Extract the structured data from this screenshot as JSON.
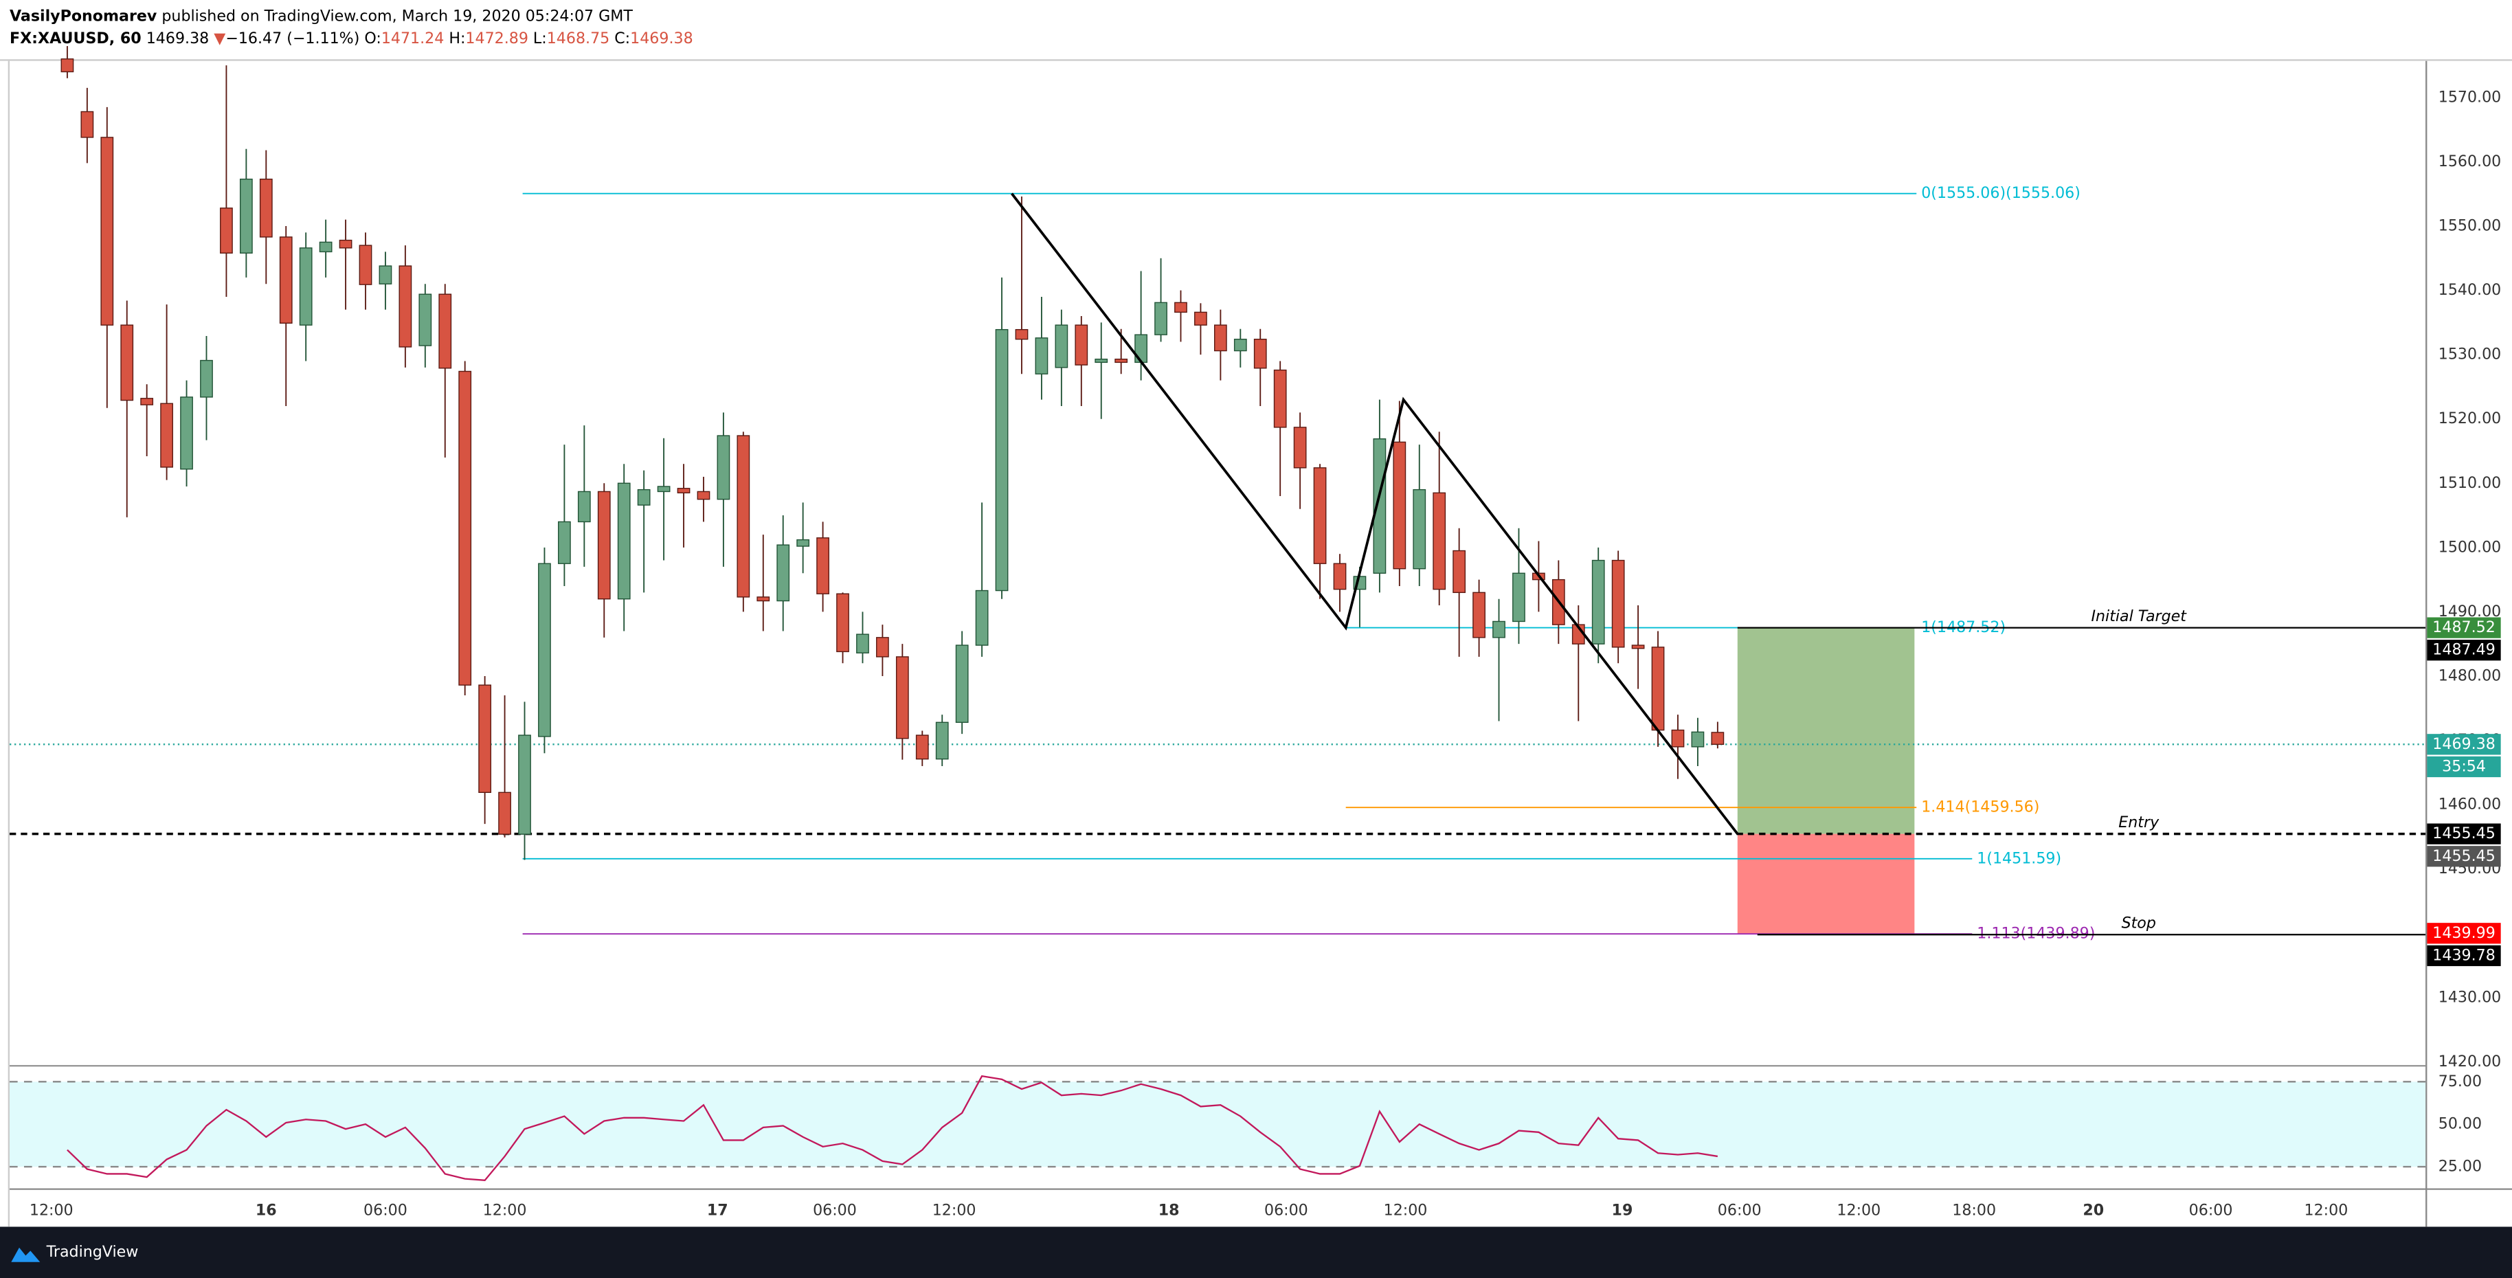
{
  "header": {
    "author": "VasilyPonomarev",
    "published": "published on TradingView.com, March 19, 2020 05:24:07 GMT",
    "symbol": "FX:XAUUSD, 60",
    "last": "1469.38",
    "arrow": "▼",
    "change": "−16.47 (−1.11%)",
    "ohlc": [
      {
        "label": "O:",
        "value": "1471.24"
      },
      {
        "label": "H:",
        "value": "1472.89"
      },
      {
        "label": "L:",
        "value": "1468.75"
      },
      {
        "label": "C:",
        "value": "1469.38"
      }
    ]
  },
  "chart_data": [
    {
      "type": "candlestick",
      "up_color": "#6ba583",
      "down_color": "#d75442",
      "open": [
        1576,
        1567.8,
        1563.8,
        1534.6,
        1523.2,
        1522.4,
        1512.2,
        1523.4,
        1552.8,
        1545.8,
        1557.3,
        1548.3,
        1534.6,
        1546,
        1547.8,
        1547,
        1541,
        1543.8,
        1531.4,
        1539.4,
        1527.4,
        1478.6,
        1461.9,
        1455.4,
        1470.6,
        1497.5,
        1504,
        1508.7,
        1492,
        1506.6,
        1508.7,
        1509.2,
        1508.7,
        1507.5,
        1517.4,
        1492.3,
        1491.7,
        1500.2,
        1501.5,
        1492.8,
        1483.6,
        1486,
        1483,
        1470.8,
        1467.1,
        1472.8,
        1484.8,
        1493.3,
        1533.9,
        1527,
        1528,
        1534.6,
        1528.8,
        1529.3,
        1528.8,
        1533.1,
        1538.1,
        1536.6,
        1534.6,
        1530.6,
        1532.4,
        1527.6,
        1518.7,
        1512.4,
        1497.5,
        1493.5,
        1496,
        1516.4,
        1496.7,
        1508.5,
        1499.5,
        1493,
        1486,
        1488.5,
        1496,
        1495,
        1488,
        1485,
        1498,
        1484.8,
        1484.5,
        1471.6,
        1469,
        1471.24
      ],
      "high": [
        1578,
        1571.5,
        1568.5,
        1538.4,
        1525.4,
        1537.8,
        1526,
        1532.9,
        1575,
        1562,
        1561.8,
        1550,
        1549,
        1551,
        1551,
        1549,
        1546,
        1547,
        1541,
        1541,
        1529,
        1480,
        1477,
        1476,
        1500,
        1516,
        1519,
        1510,
        1513,
        1512,
        1517,
        1513,
        1511,
        1521,
        1518,
        1502,
        1505,
        1507,
        1504,
        1493,
        1490,
        1488,
        1485,
        1471.5,
        1474,
        1487,
        1507,
        1542,
        1554.6,
        1539,
        1537,
        1536,
        1535,
        1534,
        1543,
        1545,
        1540,
        1538,
        1537,
        1534,
        1534,
        1529,
        1521,
        1513,
        1499,
        1497,
        1523,
        1522.8,
        1516,
        1518,
        1503,
        1495,
        1492,
        1503,
        1501,
        1498,
        1491,
        1500,
        1499.5,
        1491,
        1487,
        1474,
        1473.5,
        1472.89
      ],
      "low": [
        1573,
        1559.8,
        1521.7,
        1504.7,
        1514.2,
        1510.5,
        1509.5,
        1516.7,
        1539,
        1542,
        1541,
        1522,
        1529,
        1542,
        1537,
        1537,
        1537,
        1528,
        1528,
        1514,
        1477,
        1457,
        1454.9,
        1451.4,
        1468,
        1494,
        1497,
        1486,
        1487,
        1493,
        1498,
        1500,
        1504,
        1497,
        1490,
        1487,
        1487,
        1496,
        1490,
        1482,
        1482,
        1480,
        1467,
        1466,
        1466,
        1471,
        1483,
        1492,
        1527,
        1523,
        1522,
        1522,
        1520,
        1527,
        1526,
        1532,
        1532,
        1530,
        1526,
        1528,
        1522,
        1508,
        1506,
        1492,
        1490,
        1487.6,
        1493,
        1494,
        1494,
        1491,
        1483,
        1483,
        1473,
        1485,
        1490,
        1485,
        1473,
        1482,
        1482,
        1478,
        1469,
        1464,
        1466,
        1468.75
      ],
      "close": [
        1574,
        1563.8,
        1534.6,
        1522.9,
        1522.2,
        1512.5,
        1523.4,
        1529.1,
        1545.8,
        1557.3,
        1548.3,
        1534.9,
        1546.6,
        1547.5,
        1546.6,
        1540.9,
        1543.8,
        1531.2,
        1539.4,
        1527.9,
        1478.6,
        1461.9,
        1455.4,
        1470.8,
        1497.5,
        1504,
        1508.7,
        1492,
        1510,
        1509,
        1509.5,
        1508.5,
        1507.5,
        1517.4,
        1492.3,
        1491.7,
        1500.4,
        1501.2,
        1492.8,
        1483.8,
        1486.5,
        1483,
        1470.3,
        1467.1,
        1472.8,
        1484.8,
        1493.3,
        1533.9,
        1532.4,
        1532.6,
        1534.6,
        1528.4,
        1529.3,
        1528.8,
        1533.1,
        1538.1,
        1536.6,
        1534.6,
        1530.6,
        1532.4,
        1527.9,
        1518.7,
        1512.4,
        1497.5,
        1493.5,
        1495.5,
        1516.9,
        1496.7,
        1509,
        1493.5,
        1493,
        1486,
        1488.5,
        1496,
        1495,
        1488,
        1485,
        1498,
        1484.5,
        1484.3,
        1471.6,
        1469,
        1471.3,
        1469.38
      ],
      "xlim": [
        -2.9,
        118.6
      ],
      "xticks": [
        {
          "value": -0.8,
          "label": "12:00"
        },
        {
          "value": 10,
          "label": "16"
        },
        {
          "value": 16,
          "label": "06:00"
        },
        {
          "value": 22,
          "label": "12:00"
        },
        {
          "value": 32.7,
          "label": "17"
        },
        {
          "value": 38.6,
          "label": "06:00"
        },
        {
          "value": 44.6,
          "label": "12:00"
        },
        {
          "value": 55.4,
          "label": "18"
        },
        {
          "value": 61.3,
          "label": "06:00"
        },
        {
          "value": 67.3,
          "label": "12:00"
        },
        {
          "value": 78.2,
          "label": "19"
        },
        {
          "value": 84.1,
          "label": "06:00"
        },
        {
          "value": 90.1,
          "label": "12:00"
        },
        {
          "value": 95.9,
          "label": "18:00"
        },
        {
          "value": 101.9,
          "label": "20"
        },
        {
          "value": 107.8,
          "label": "06:00"
        },
        {
          "value": 113.6,
          "label": "12:00"
        }
      ],
      "ylim": [
        1420,
        1575.7
      ],
      "yticks": [
        {
          "value": 1420,
          "label": "1420.00"
        },
        {
          "value": 1430,
          "label": "1430.00"
        },
        {
          "value": 1440,
          "label": "1440.00"
        },
        {
          "value": 1450,
          "label": "1450.00"
        },
        {
          "value": 1460,
          "label": "1460.00"
        },
        {
          "value": 1470,
          "label": "1470.00"
        },
        {
          "value": 1480,
          "label": "1480.00"
        },
        {
          "value": 1490,
          "label": "1490.00"
        },
        {
          "value": 1500,
          "label": "1500.00"
        },
        {
          "value": 1510,
          "label": "1510.00"
        },
        {
          "value": 1520,
          "label": "1520.00"
        },
        {
          "value": 1530,
          "label": "1530.00"
        },
        {
          "value": 1540,
          "label": "1540.00"
        },
        {
          "value": 1550,
          "label": "1550.00"
        },
        {
          "value": 1560,
          "label": "1560.00"
        },
        {
          "value": 1570,
          "label": "1570.00"
        }
      ],
      "grid": false,
      "current_price": {
        "value": 1469.38,
        "color": "#26a69a",
        "countdown": "35:54"
      },
      "price_labels": [
        {
          "value": 1487.52,
          "color": "#388e3c"
        },
        {
          "value": 1487.49,
          "color": "#000000"
        },
        {
          "value": 1469.38,
          "color": "#26a69a"
        },
        {
          "value": 1455.45,
          "color": "#000000"
        },
        {
          "value": 1455.45,
          "color": "#555555"
        },
        {
          "value": 1439.99,
          "color": "#ff0000"
        },
        {
          "value": 1439.78,
          "color": "#000000"
        }
      ],
      "fib_levels": [
        {
          "value": 1555.06,
          "label": "0(1555.06)(1555.06)",
          "color": "#00bcd4",
          "x": [
            22.9,
            93
          ]
        },
        {
          "value": 1487.52,
          "label": "1(1487.52)",
          "color": "#00bcd4",
          "x": [
            64.3,
            93
          ]
        },
        {
          "value": 1459.56,
          "label": "1.414(1459.56)",
          "color": "#ff9800",
          "x": [
            64.3,
            93
          ]
        },
        {
          "value": 1451.59,
          "label": "1(1451.59)",
          "color": "#00bcd4",
          "x": [
            22.9,
            95.8
          ]
        },
        {
          "value": 1439.89,
          "label": "1.113(1439.89)",
          "color": "#9c27b0",
          "x": [
            22.9,
            95.8
          ]
        }
      ],
      "trend_line": {
        "x": [
          47.5,
          64.3,
          67.2,
          84
        ],
        "y": [
          1555.06,
          1487.52,
          1523,
          1455.45
        ]
      },
      "position": {
        "x": [
          84,
          92.9
        ],
        "target": 1487.52,
        "entry": 1455.45,
        "stop": 1439.89,
        "profit_color": "#a1c390",
        "loss_color": "#ff8585"
      },
      "levels": [
        {
          "value": 1487.52,
          "label": "Initial Target",
          "x": 84
        },
        {
          "value": 1455.45,
          "label": "Entry",
          "x": -2.9
        },
        {
          "value": 1439.78,
          "label": "Stop",
          "x": 85
        }
      ]
    },
    {
      "type": "line",
      "ylim": [
        12.3,
        82
      ],
      "yticks": [
        {
          "value": 25,
          "label": "25.00"
        },
        {
          "value": 50,
          "label": "50.00"
        },
        {
          "value": 75,
          "label": "75.00"
        }
      ],
      "band": [
        25,
        75
      ],
      "band_color": "#e0fbfc",
      "series": [
        {
          "color": "#c2185b",
          "values": [
            34.9,
            23.6,
            20.8,
            20.8,
            18.9,
            29.3,
            34.9,
            49.1,
            58.5,
            51.9,
            42.5,
            50.9,
            52.8,
            51.9,
            47.2,
            50,
            42.5,
            48.1,
            35.9,
            20.8,
            17.9,
            17,
            31.1,
            47.2,
            50.9,
            54.7,
            44.3,
            51.9,
            53.8,
            53.8,
            52.8,
            51.9,
            61.3,
            40.6,
            40.6,
            48.1,
            49.1,
            42.5,
            36.8,
            38.7,
            34.9,
            28.3,
            26.4,
            34.9,
            48.1,
            56.6,
            78.3,
            76.4,
            70.7,
            74.5,
            67,
            67.9,
            67,
            69.8,
            73.6,
            70.7,
            67,
            60.4,
            61.3,
            54.7,
            45.3,
            36.8,
            23.6,
            20.8,
            20.8,
            25.5,
            57.5,
            39.6,
            50,
            44.3,
            38.7,
            34.9,
            38.7,
            46.2,
            45.3,
            38.7,
            37.7,
            53.8,
            41.5,
            40.6,
            33,
            32.1,
            33,
            31.1
          ]
        }
      ]
    }
  ],
  "footer": {
    "brand": "TradingView"
  }
}
